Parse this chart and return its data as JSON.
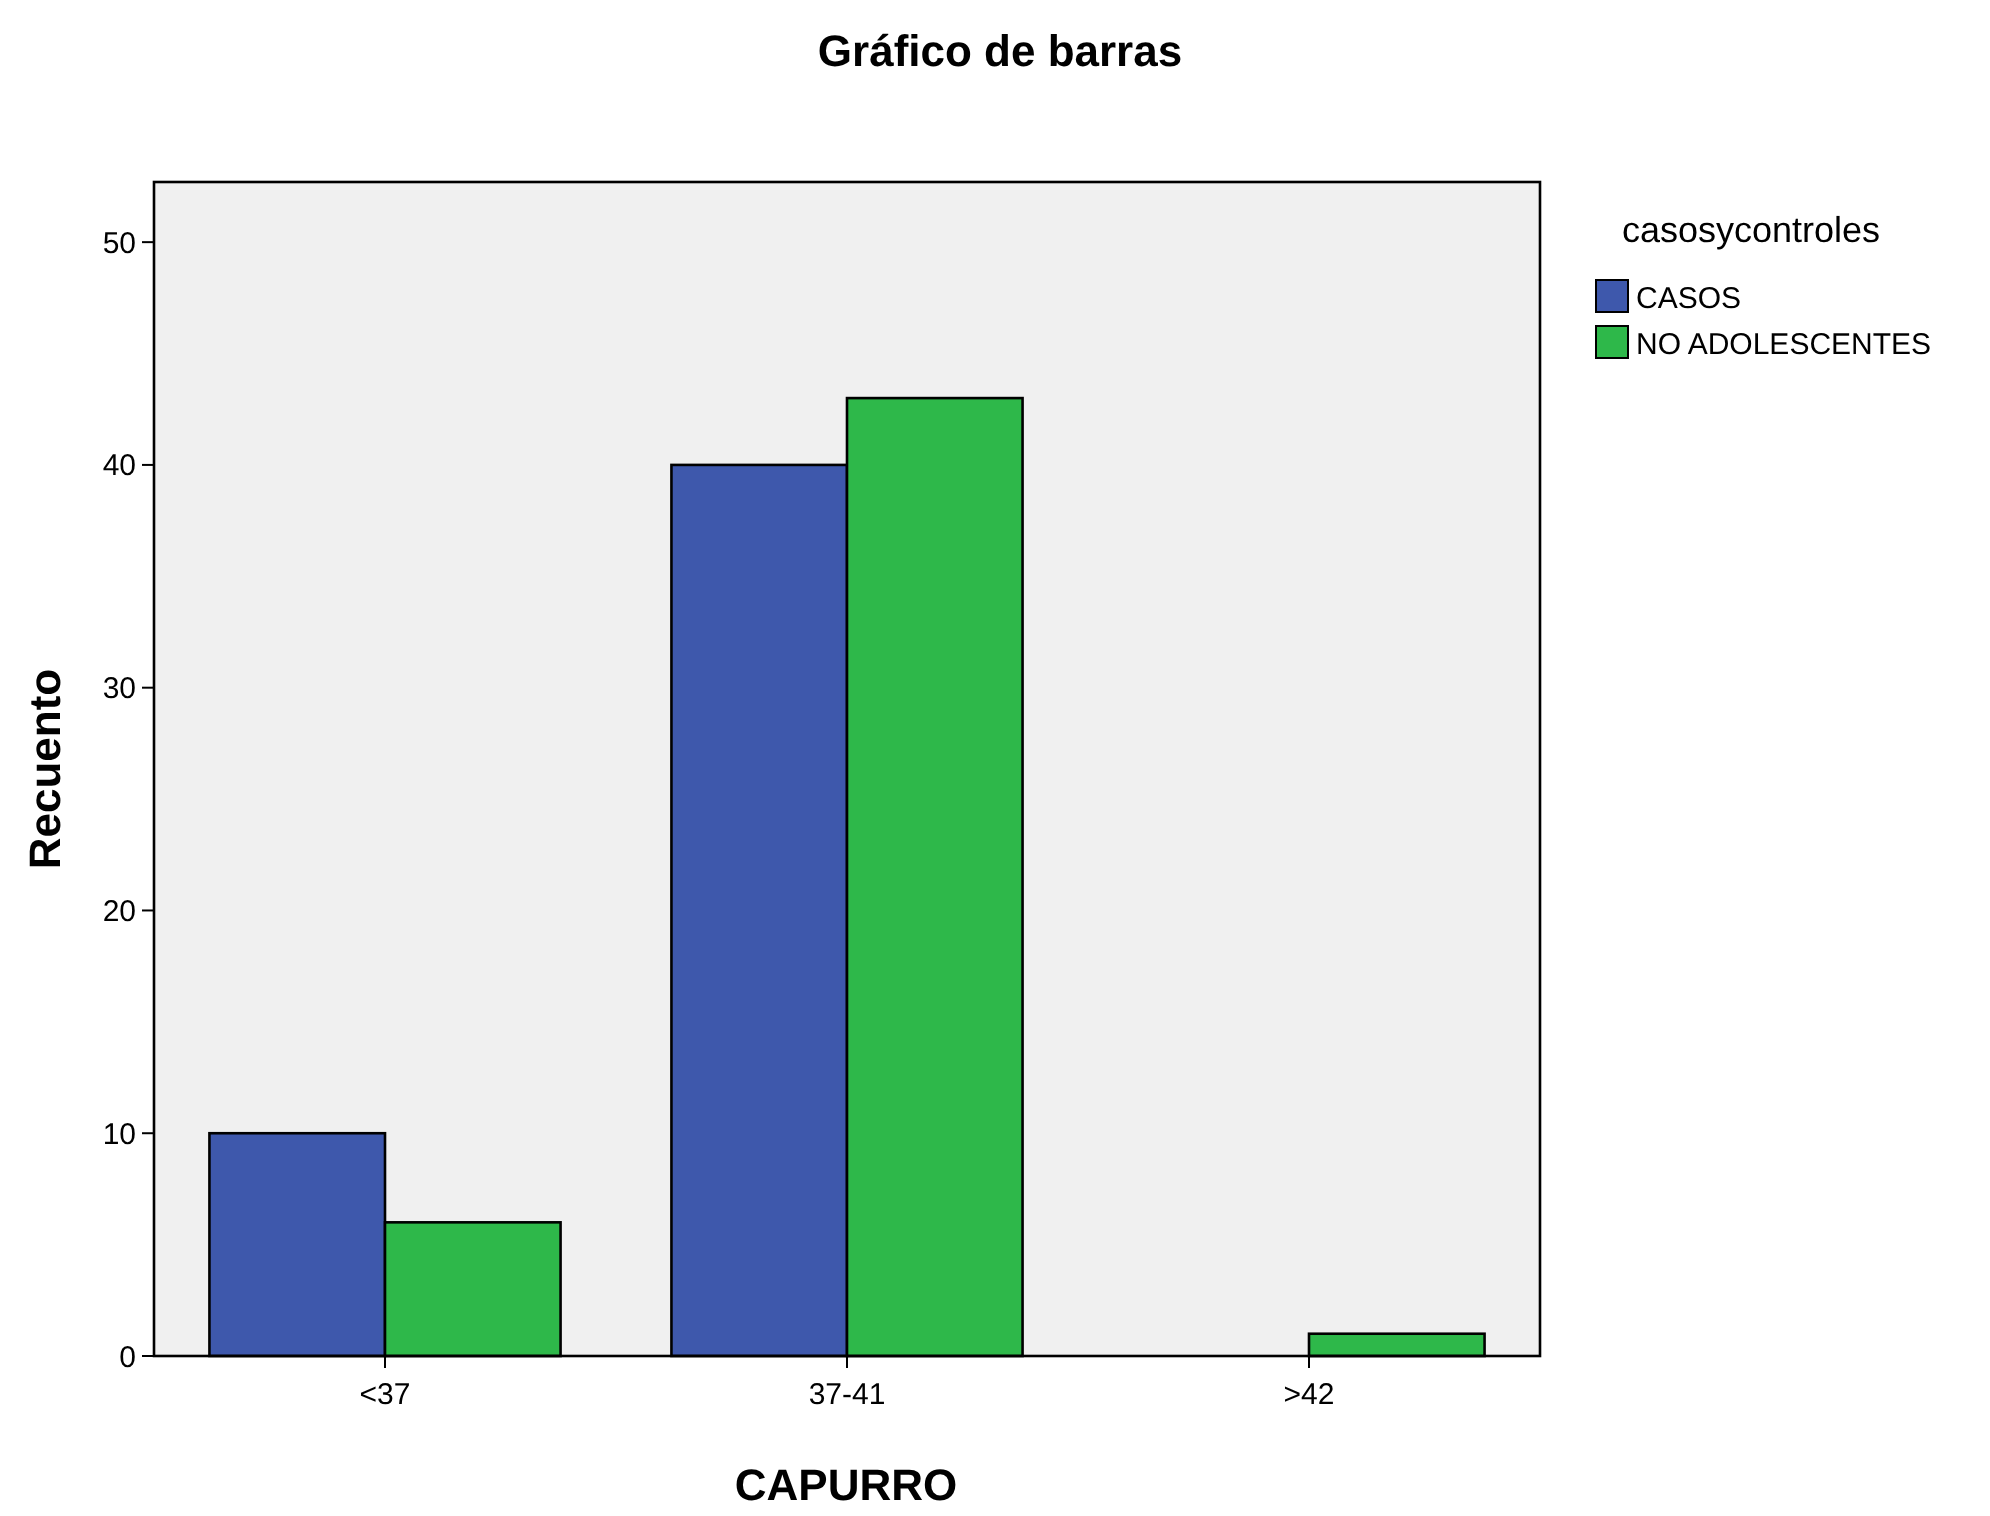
{
  "chart_data": {
    "type": "bar",
    "title": "Gráfico de barras",
    "xlabel": "CAPURRO",
    "ylabel": "Recuento",
    "legend_title": "casosycontroles",
    "legend": "top right",
    "grid": false,
    "categories": [
      "<37",
      "37-41",
      ">42"
    ],
    "series": [
      {
        "name": "CASOS",
        "color": "#3e58ac",
        "values": [
          10,
          40,
          0
        ]
      },
      {
        "name": "NO ADOLESCENTES",
        "color": "#2eb84a",
        "values": [
          6,
          43,
          1
        ]
      }
    ],
    "ylim": [
      0,
      52.7
    ],
    "yticks": [
      0,
      10,
      20,
      30,
      40,
      50
    ]
  }
}
